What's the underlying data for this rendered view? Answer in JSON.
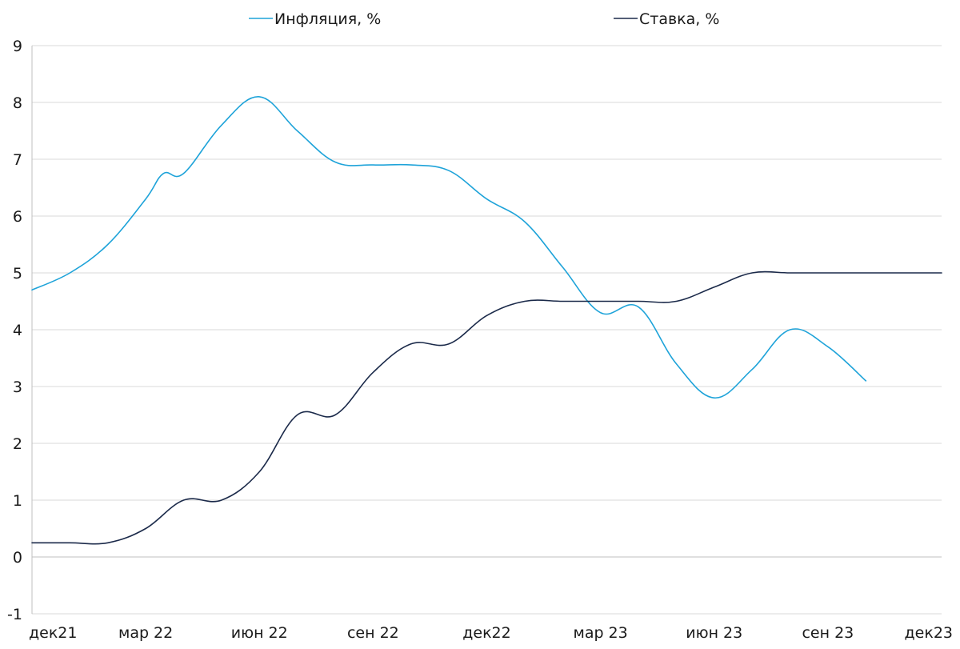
{
  "chart_data": {
    "type": "line",
    "title": "",
    "xlabel": "",
    "ylabel": "",
    "ylim": [
      -1,
      9
    ],
    "yticks": [
      9,
      8,
      7,
      6,
      5,
      4,
      3,
      2,
      1,
      0,
      -1
    ],
    "grid": true,
    "legend_position": "top-center",
    "x_tick_labels": [
      "дек21",
      "мар 22",
      "июн 22",
      "сен 22",
      "дек22",
      "мар 23",
      "июн 23",
      "сен 23",
      "дек23"
    ],
    "x_range": [
      "2021-12",
      "2023-12"
    ],
    "series": [
      {
        "name": "Инфляция, %",
        "color": "#1ea3d9",
        "points": [
          {
            "x": "2021-12",
            "y": 4.7
          },
          {
            "x": "2022-01",
            "y": 5.0
          },
          {
            "x": "2022-02",
            "y": 5.5
          },
          {
            "x": "2022-03",
            "y": 6.3
          },
          {
            "x": "2022-03-15",
            "y": 6.75
          },
          {
            "x": "2022-04",
            "y": 6.75
          },
          {
            "x": "2022-05",
            "y": 7.6
          },
          {
            "x": "2022-06",
            "y": 8.1
          },
          {
            "x": "2022-07",
            "y": 7.5
          },
          {
            "x": "2022-08",
            "y": 6.95
          },
          {
            "x": "2022-09",
            "y": 6.9
          },
          {
            "x": "2022-10",
            "y": 6.9
          },
          {
            "x": "2022-11",
            "y": 6.8
          },
          {
            "x": "2022-12",
            "y": 6.3
          },
          {
            "x": "2023-01",
            "y": 5.9
          },
          {
            "x": "2023-02",
            "y": 5.1
          },
          {
            "x": "2023-03",
            "y": 4.3
          },
          {
            "x": "2023-04",
            "y": 4.4
          },
          {
            "x": "2023-05",
            "y": 3.4
          },
          {
            "x": "2023-06",
            "y": 2.8
          },
          {
            "x": "2023-07",
            "y": 3.3
          },
          {
            "x": "2023-08",
            "y": 4.0
          },
          {
            "x": "2023-09",
            "y": 3.7
          },
          {
            "x": "2023-10",
            "y": 3.1
          }
        ]
      },
      {
        "name": "Ставка, %",
        "color": "#1b2a4a",
        "points": [
          {
            "x": "2021-12",
            "y": 0.25
          },
          {
            "x": "2022-01",
            "y": 0.25
          },
          {
            "x": "2022-02",
            "y": 0.25
          },
          {
            "x": "2022-03",
            "y": 0.5
          },
          {
            "x": "2022-04",
            "y": 1.0
          },
          {
            "x": "2022-05",
            "y": 1.0
          },
          {
            "x": "2022-06",
            "y": 1.5
          },
          {
            "x": "2022-07",
            "y": 2.5
          },
          {
            "x": "2022-08",
            "y": 2.5
          },
          {
            "x": "2022-09",
            "y": 3.25
          },
          {
            "x": "2022-10",
            "y": 3.75
          },
          {
            "x": "2022-11",
            "y": 3.75
          },
          {
            "x": "2022-12",
            "y": 4.25
          },
          {
            "x": "2023-01",
            "y": 4.5
          },
          {
            "x": "2023-02",
            "y": 4.5
          },
          {
            "x": "2023-03",
            "y": 4.5
          },
          {
            "x": "2023-04",
            "y": 4.5
          },
          {
            "x": "2023-05",
            "y": 4.5
          },
          {
            "x": "2023-06",
            "y": 4.75
          },
          {
            "x": "2023-07",
            "y": 5.0
          },
          {
            "x": "2023-08",
            "y": 5.0
          },
          {
            "x": "2023-09",
            "y": 5.0
          },
          {
            "x": "2023-10",
            "y": 5.0
          },
          {
            "x": "2023-11",
            "y": 5.0
          },
          {
            "x": "2023-12",
            "y": 5.0
          }
        ]
      }
    ]
  }
}
